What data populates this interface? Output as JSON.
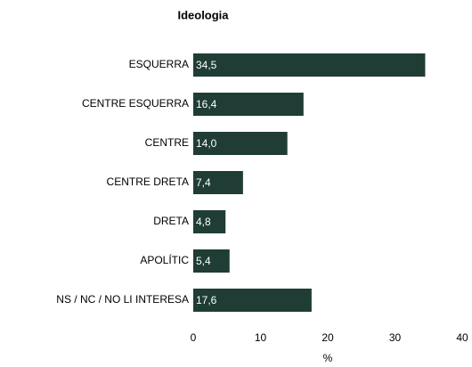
{
  "chart_data": {
    "type": "hbar",
    "title": "Ideologia",
    "x_label": "%",
    "categories": [
      "ESQUERRA",
      "CENTRE ESQUERRA",
      "CENTRE",
      "CENTRE DRETA",
      "DRETA",
      "APOLÍTIC",
      "NS / NC / NO LI INTERESA"
    ],
    "values": [
      34.5,
      16.4,
      14.0,
      7.4,
      4.8,
      5.4,
      17.6
    ],
    "value_labels": [
      "34,5",
      "16,4",
      "14,0",
      "7,4",
      "4,8",
      "5,4",
      "17,6"
    ],
    "color": "#1f3d35",
    "xlim": [
      0,
      40
    ],
    "xticks": [
      0,
      10,
      20,
      30,
      40
    ],
    "grid": false
  }
}
